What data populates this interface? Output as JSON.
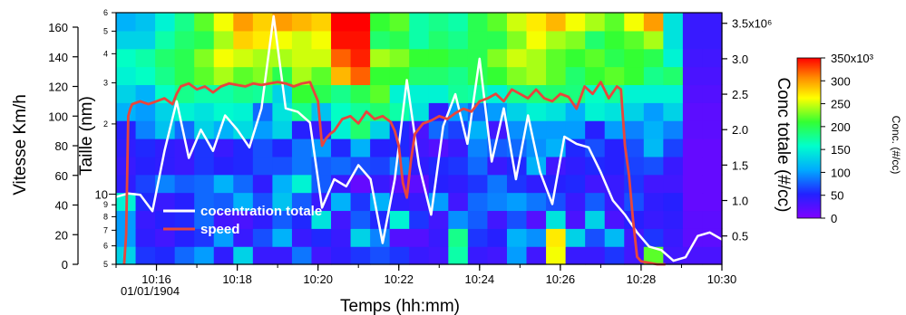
{
  "chart_data": {
    "type": "heatmap",
    "title": "",
    "xlabel": "Temps (hh:mm)",
    "x_date_label": "01/01/1904",
    "x_ticks": [
      "10:16",
      "10:18",
      "10:20",
      "10:22",
      "10:24",
      "10:26",
      "10:28",
      "10:30"
    ],
    "x_range_minutes": [
      15.0,
      30.0
    ],
    "ylabel_left": "Vitesse Km/h",
    "ylabel_left_ticks": [
      "0",
      "20",
      "40",
      "60",
      "80",
      "100",
      "120",
      "140",
      "160"
    ],
    "ylim_left": [
      0,
      165
    ],
    "ylabel_inner": "Taille (nm)",
    "ylabel_inner_ticks": [
      "5",
      "6",
      "7",
      "8",
      "9",
      "10",
      "2",
      "3",
      "4",
      "5",
      "6"
    ],
    "ylabel_inner_scale": "log",
    "ylabel_right": "Conc totale (#/cc)",
    "ylabel_right_ticks": [
      "0.5",
      "1.0",
      "1.5",
      "2.0",
      "2.5",
      "3.0",
      "3.5x10⁶"
    ],
    "ylim_right": [
      0.1,
      3.65
    ],
    "colorbar": {
      "title": "Conc. (#/cc)",
      "ticks": [
        "0",
        "50",
        "100",
        "150",
        "200",
        "250",
        "300",
        "350x10³"
      ],
      "range": [
        0,
        350
      ]
    },
    "legend": {
      "placement": "bottom-left",
      "entries": [
        {
          "label": "cocentration totale",
          "color": "#ffffff"
        },
        {
          "label": "speed",
          "color": "#e8453c"
        }
      ]
    },
    "heatmap_cells": [
      [
        130,
        60,
        55,
        80,
        100,
        45,
        130,
        40,
        40,
        85,
        35,
        45,
        60,
        70,
        60,
        40,
        35,
        170,
        40,
        35,
        100,
        35,
        260,
        40,
        40,
        60,
        35,
        220,
        35,
        30,
        30
      ],
      [
        100,
        45,
        35,
        50,
        60,
        100,
        40,
        70,
        110,
        40,
        55,
        40,
        130,
        90,
        25,
        25,
        40,
        180,
        60,
        50,
        110,
        95,
        270,
        130,
        70,
        115,
        35,
        60,
        40,
        20,
        20
      ],
      [
        100,
        40,
        50,
        55,
        80,
        35,
        30,
        45,
        75,
        55,
        140,
        35,
        75,
        55,
        150,
        60,
        35,
        95,
        75,
        35,
        70,
        25,
        140,
        30,
        130,
        30,
        50,
        40,
        45,
        20,
        20
      ],
      [
        150,
        55,
        40,
        50,
        80,
        75,
        110,
        70,
        120,
        75,
        40,
        110,
        60,
        110,
        45,
        40,
        100,
        35,
        80,
        90,
        100,
        85,
        70,
        40,
        75,
        40,
        70,
        45,
        50,
        15,
        15
      ],
      [
        45,
        65,
        90,
        75,
        80,
        110,
        80,
        45,
        110,
        150,
        75,
        40,
        15,
        40,
        20,
        20,
        50,
        45,
        60,
        85,
        60,
        45,
        50,
        55,
        35,
        40,
        60,
        35,
        35,
        15,
        15
      ],
      [
        40,
        50,
        45,
        40,
        60,
        50,
        55,
        70,
        70,
        85,
        75,
        80,
        70,
        65,
        90,
        45,
        55,
        60,
        80,
        40,
        55,
        110,
        35,
        45,
        55,
        50,
        65,
        70,
        40,
        15,
        15
      ],
      [
        45,
        55,
        45,
        40,
        60,
        40,
        55,
        70,
        55,
        85,
        100,
        55,
        110,
        50,
        55,
        35,
        25,
        40,
        90,
        75,
        80,
        95,
        110,
        55,
        70,
        50,
        70,
        115,
        65,
        15,
        15
      ],
      [
        50,
        90,
        120,
        80,
        130,
        110,
        135,
        100,
        130,
        50,
        40,
        150,
        190,
        130,
        55,
        30,
        80,
        65,
        110,
        35,
        95,
        100,
        100,
        100,
        50,
        100,
        90,
        110,
        90,
        20,
        20
      ],
      [
        110,
        100,
        130,
        150,
        140,
        155,
        150,
        80,
        140,
        180,
        120,
        160,
        175,
        190,
        170,
        140,
        45,
        100,
        80,
        100,
        130,
        150,
        140,
        110,
        150,
        140,
        130,
        100,
        130,
        20,
        20
      ],
      [
        130,
        110,
        160,
        180,
        170,
        170,
        180,
        175,
        130,
        210,
        200,
        180,
        200,
        220,
        150,
        150,
        150,
        175,
        170,
        150,
        180,
        185,
        190,
        185,
        160,
        175,
        150,
        150,
        150,
        25,
        25
      ],
      [
        150,
        160,
        180,
        200,
        220,
        240,
        220,
        230,
        200,
        240,
        220,
        290,
        320,
        210,
        210,
        190,
        190,
        180,
        200,
        210,
        230,
        240,
        220,
        190,
        210,
        220,
        210,
        180,
        190,
        30,
        30
      ],
      [
        160,
        170,
        190,
        200,
        230,
        260,
        250,
        240,
        240,
        250,
        250,
        320,
        340,
        240,
        230,
        210,
        210,
        200,
        200,
        230,
        250,
        240,
        220,
        210,
        220,
        200,
        210,
        200,
        150,
        35,
        35
      ],
      [
        130,
        130,
        170,
        190,
        200,
        240,
        280,
        270,
        260,
        250,
        260,
        345,
        345,
        190,
        200,
        170,
        190,
        180,
        200,
        200,
        230,
        260,
        240,
        230,
        190,
        210,
        220,
        240,
        140,
        40,
        40
      ],
      [
        110,
        120,
        150,
        180,
        220,
        260,
        300,
        280,
        300,
        290,
        280,
        350,
        350,
        210,
        220,
        170,
        180,
        170,
        200,
        220,
        250,
        270,
        290,
        260,
        240,
        220,
        260,
        300,
        140,
        40,
        40
      ]
    ],
    "series": [
      {
        "name": "cocentration totale",
        "axis": "right",
        "color": "#ffffff",
        "x_minutes": [
          15.0,
          15.3,
          15.6,
          15.9,
          16.2,
          16.5,
          16.8,
          17.1,
          17.4,
          17.7,
          18.0,
          18.3,
          18.6,
          18.9,
          19.2,
          19.5,
          19.8,
          20.1,
          20.4,
          20.7,
          21.0,
          21.3,
          21.6,
          21.9,
          22.2,
          22.5,
          22.8,
          23.1,
          23.4,
          23.7,
          24.0,
          24.3,
          24.6,
          24.9,
          25.2,
          25.5,
          25.8,
          26.1,
          26.4,
          26.7,
          27.0,
          27.3,
          27.6,
          27.9,
          28.2,
          28.5,
          28.8,
          29.1,
          29.4,
          29.7,
          30.0
        ],
        "y_values": [
          1.05,
          1.1,
          1.08,
          0.85,
          1.7,
          2.4,
          1.6,
          2.0,
          1.7,
          2.2,
          2.0,
          1.75,
          2.3,
          3.6,
          2.3,
          2.25,
          2.1,
          0.9,
          1.3,
          1.2,
          1.5,
          1.3,
          0.4,
          1.3,
          2.7,
          1.5,
          0.8,
          2.05,
          2.5,
          1.8,
          3.0,
          1.55,
          2.3,
          1.3,
          2.2,
          1.4,
          0.95,
          1.9,
          1.8,
          1.75,
          1.4,
          1.0,
          0.8,
          0.55,
          0.35,
          0.3,
          0.15,
          0.2,
          0.5,
          0.55,
          0.45
        ]
      },
      {
        "name": "speed",
        "axis": "left",
        "color": "#e8453c",
        "x_minutes": [
          15.0,
          15.1,
          15.2,
          15.25,
          15.3,
          15.35,
          15.4,
          15.6,
          15.8,
          16.0,
          16.2,
          16.4,
          16.5,
          16.6,
          16.8,
          17.0,
          17.2,
          17.4,
          17.6,
          17.8,
          18.0,
          18.2,
          18.4,
          18.6,
          18.8,
          19.0,
          19.2,
          19.4,
          19.6,
          19.8,
          20.0,
          20.1,
          20.2,
          20.3,
          20.4,
          20.6,
          20.8,
          21.0,
          21.2,
          21.4,
          21.6,
          21.8,
          21.9,
          22.0,
          22.1,
          22.2,
          22.3,
          22.4,
          22.6,
          22.8,
          23.0,
          23.2,
          23.4,
          23.6,
          23.8,
          24.0,
          24.2,
          24.4,
          24.6,
          24.8,
          25.0,
          25.2,
          25.4,
          25.6,
          25.8,
          26.0,
          26.2,
          26.4,
          26.6,
          26.8,
          27.0,
          27.2,
          27.4,
          27.5,
          27.6,
          27.7,
          27.8,
          27.9,
          28.0,
          28.2,
          28.4,
          28.6
        ],
        "y_values": [
          null,
          null,
          0,
          20,
          100,
          105,
          108,
          110,
          108,
          110,
          112,
          108,
          115,
          120,
          122,
          118,
          120,
          116,
          120,
          122,
          121,
          120,
          122,
          121,
          122,
          123,
          122,
          120,
          122,
          123,
          110,
          80,
          85,
          88,
          90,
          98,
          100,
          95,
          103,
          98,
          100,
          96,
          90,
          80,
          55,
          45,
          70,
          88,
          95,
          97,
          100,
          98,
          102,
          105,
          103,
          110,
          112,
          115,
          110,
          118,
          115,
          112,
          118,
          112,
          110,
          115,
          113,
          105,
          120,
          115,
          123,
          112,
          120,
          118,
          80,
          60,
          30,
          5,
          2,
          1,
          0,
          0
        ]
      }
    ]
  }
}
